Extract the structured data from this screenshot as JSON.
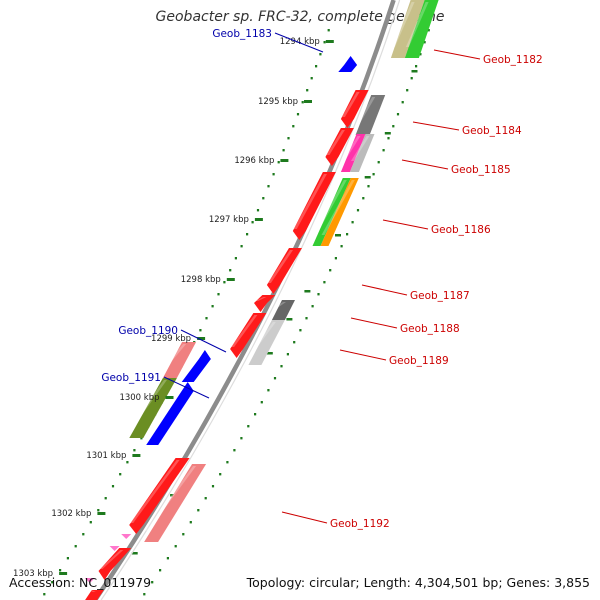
{
  "title": "Geobacter sp. FRC-32, complete genome",
  "footer": {
    "accession": "Accession: NC_011979",
    "topology": "Topology: circular; Length: 4,304,501 bp; Genes: 3,855"
  },
  "colors": {
    "backbone": "#8c8c8c",
    "tick": "#1e7a1e",
    "forward_label": "#cc0000",
    "reverse_label": "#0000aa"
  },
  "ruler": [
    "1294 kbp",
    "1295 kbp",
    "1296 kbp",
    "1297 kbp",
    "1298 kbp",
    "1299 kbp",
    "1300 kbp",
    "1301 kbp",
    "1302 kbp",
    "1303 kbp"
  ],
  "gene_labels": [
    "Geob_1182",
    "Geob_1183",
    "Geob_1184",
    "Geob_1185",
    "Geob_1186",
    "Geob_1187",
    "Geob_1188",
    "Geob_1189",
    "Geob_1190",
    "Geob_1191",
    "Geob_1192"
  ]
}
